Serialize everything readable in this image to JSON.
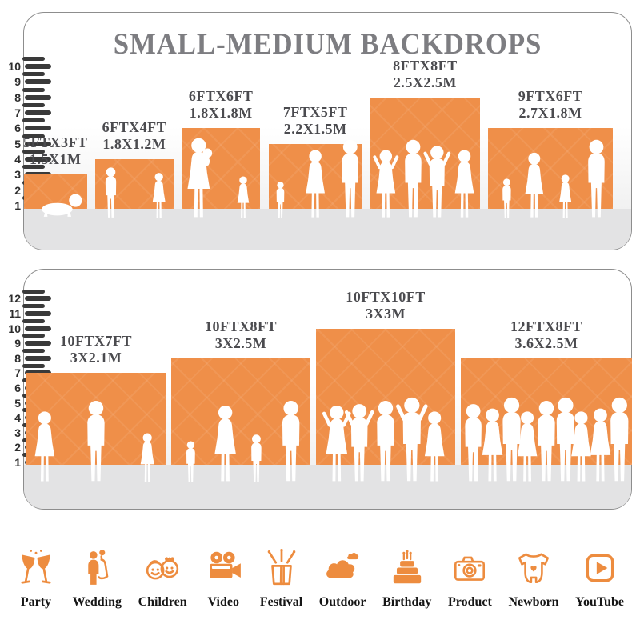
{
  "title": "SMALL-MEDIUM BACKDROPS",
  "colors": {
    "bar_orange": "#ef8f49",
    "icon_orange": "#ed8c3f",
    "title_gray": "#7d7d81",
    "label_gray": "#4b4b4f",
    "tick_dark": "#3a3a3a",
    "floor_gray": "#e3e3e4",
    "silhouette_white": "#ffffff"
  },
  "chart_data": [
    {
      "type": "bar",
      "title": "SMALL-MEDIUM BACKDROPS",
      "ylabel": "",
      "xlabel": "",
      "ylim": [
        0,
        10
      ],
      "yticks": [
        1,
        2,
        3,
        4,
        5,
        6,
        7,
        8,
        9,
        10
      ],
      "grid": false,
      "legend": "none",
      "bars": [
        {
          "label": "5FTX3FT",
          "sublabel": "1.5X1M",
          "width_ft": 5,
          "height_ft": 3,
          "people": [
            "baby"
          ]
        },
        {
          "label": "6FTX4FT",
          "sublabel": "1.8X1.2M",
          "width_ft": 6,
          "height_ft": 4,
          "people": [
            "boy",
            "girl"
          ]
        },
        {
          "label": "6FTX6FT",
          "sublabel": "1.8X1.8M",
          "width_ft": 6,
          "height_ft": 6,
          "people": [
            "woman-baby",
            "girl"
          ]
        },
        {
          "label": "7FTX5FT",
          "sublabel": "2.2X1.5M",
          "width_ft": 7,
          "height_ft": 5,
          "people": [
            "toddler",
            "woman",
            "man"
          ]
        },
        {
          "label": "8FTX8FT",
          "sublabel": "2.5X2.5M",
          "width_ft": 8,
          "height_ft": 8,
          "people": [
            "woman-pose",
            "man",
            "man-pose",
            "woman"
          ]
        },
        {
          "label": "9FTX6FT",
          "sublabel": "2.7X1.8M",
          "width_ft": 9,
          "height_ft": 6,
          "people": [
            "toddler",
            "woman",
            "girl",
            "man"
          ]
        }
      ]
    },
    {
      "type": "bar",
      "title": "",
      "ylabel": "",
      "xlabel": "",
      "ylim": [
        0,
        12
      ],
      "yticks": [
        1,
        2,
        3,
        4,
        5,
        6,
        7,
        8,
        9,
        10,
        11,
        12
      ],
      "grid": false,
      "legend": "none",
      "bars": [
        {
          "label": "10FTX7FT",
          "sublabel": "3X2.1M",
          "width_ft": 10,
          "height_ft": 7,
          "people": [
            "woman",
            "man",
            "girl"
          ]
        },
        {
          "label": "10FTX8FT",
          "sublabel": "3X2.5M",
          "width_ft": 10,
          "height_ft": 8,
          "people": [
            "toddler",
            "woman",
            "child",
            "man"
          ]
        },
        {
          "label": "10FTX10FT",
          "sublabel": "3X3M",
          "width_ft": 10,
          "height_ft": 10,
          "people": [
            "woman-pose",
            "man-pose",
            "man",
            "man-pose",
            "woman"
          ]
        },
        {
          "label": "12FTX8FT",
          "sublabel": "3.6X2.5M",
          "width_ft": 12,
          "height_ft": 8,
          "people": [
            "man",
            "woman",
            "man",
            "woman",
            "man",
            "man",
            "woman",
            "woman",
            "man"
          ]
        }
      ]
    }
  ],
  "categories": [
    {
      "label": "Party",
      "icon": "party-icon"
    },
    {
      "label": "Wedding",
      "icon": "wedding-icon"
    },
    {
      "label": "Children",
      "icon": "children-icon"
    },
    {
      "label": "Video",
      "icon": "video-icon"
    },
    {
      "label": "Festival",
      "icon": "festival-icon"
    },
    {
      "label": "Outdoor",
      "icon": "outdoor-icon"
    },
    {
      "label": "Birthday",
      "icon": "birthday-icon"
    },
    {
      "label": "Product",
      "icon": "product-icon"
    },
    {
      "label": "Newborn",
      "icon": "newborn-icon"
    },
    {
      "label": "YouTube",
      "icon": "youtube-icon"
    }
  ]
}
